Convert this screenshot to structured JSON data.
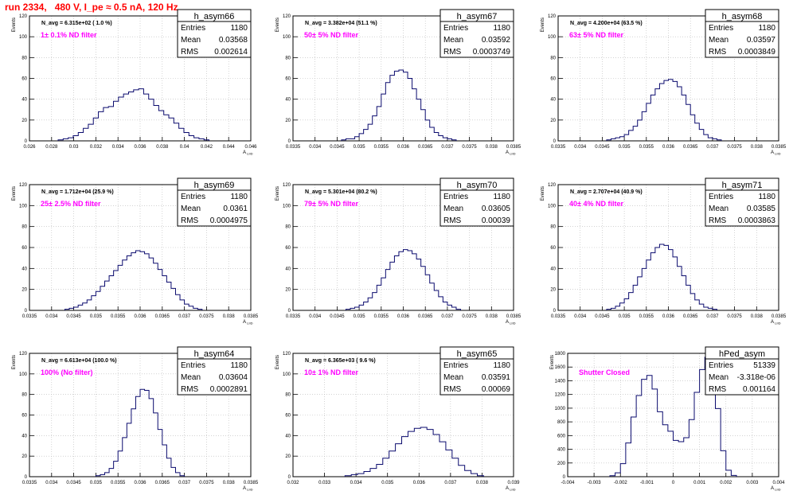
{
  "page_title": "run 2334,   480 V, I_pe ≈ 0.5 nA, 120 Hz",
  "chart_data": [
    {
      "type": "histogram",
      "stats_title": "h_asym66",
      "stats": [
        [
          "Entries",
          "1180"
        ],
        [
          "Mean",
          "0.03568"
        ],
        [
          "RMS",
          "0.002614"
        ]
      ],
      "navg_label": "N_avg = 6.315e+02 ( 1.0 %)",
      "filter_label": "1± 0.1% ND filter",
      "ylabel": "Events",
      "xlabel": "A_LIID",
      "xlim": [
        0.025,
        0.047
      ],
      "ylim": [
        0,
        120
      ],
      "xtick_labels": [
        "0.026",
        "0.028",
        "0.03",
        "0.032",
        "0.034",
        "0.036",
        "0.038",
        "0.04",
        "0.042",
        "0.044",
        "0.046"
      ],
      "ytick_labels": [
        "0",
        "20",
        "40",
        "60",
        "80",
        "100",
        "120"
      ],
      "x": [
        0.0281,
        0.0286,
        0.0291,
        0.0296,
        0.0301,
        0.0306,
        0.0311,
        0.0316,
        0.0321,
        0.0326,
        0.0331,
        0.0336,
        0.0341,
        0.0346,
        0.0351,
        0.0356,
        0.0361,
        0.0366,
        0.0371,
        0.0376,
        0.0381,
        0.0386,
        0.0391,
        0.0396,
        0.0401,
        0.0406,
        0.0411,
        0.0416,
        0.0421,
        0.0426
      ],
      "values": [
        1,
        2,
        3,
        5,
        8,
        12,
        16,
        22,
        28,
        32,
        33,
        38,
        42,
        45,
        47,
        49,
        50,
        45,
        40,
        34,
        29,
        25,
        22,
        17,
        12,
        8,
        5,
        3,
        2,
        1
      ]
    },
    {
      "type": "histogram",
      "stats_title": "h_asym67",
      "stats": [
        [
          "Entries",
          "1180"
        ],
        [
          "Mean",
          "0.03592"
        ],
        [
          "RMS",
          "0.0003749"
        ]
      ],
      "navg_label": "N_avg = 3.382e+04 (51.1 %)",
      "filter_label": "50± 5% ND filter",
      "ylabel": "Events",
      "xlabel": "A_LIID",
      "xlim": [
        0.0335,
        0.0385
      ],
      "ylim": [
        0,
        120
      ],
      "xtick_labels": [
        "0.0335",
        "0.034",
        "0.0345",
        "0.035",
        "0.0355",
        "0.036",
        "0.0365",
        "0.037",
        "0.0375",
        "0.038",
        "0.0385"
      ],
      "ytick_labels": [
        "0",
        "20",
        "40",
        "60",
        "80",
        "100",
        "120"
      ],
      "x": [
        0.03465,
        0.03475,
        0.03485,
        0.03495,
        0.03505,
        0.03515,
        0.03525,
        0.03535,
        0.03545,
        0.03555,
        0.03565,
        0.03575,
        0.03585,
        0.03595,
        0.03605,
        0.03615,
        0.03625,
        0.03635,
        0.03645,
        0.03655,
        0.03665,
        0.03675,
        0.03685,
        0.03695,
        0.03705,
        0.03715
      ],
      "values": [
        1,
        2,
        2,
        4,
        7,
        11,
        16,
        24,
        33,
        45,
        56,
        63,
        67,
        68,
        66,
        60,
        50,
        40,
        30,
        20,
        13,
        8,
        5,
        3,
        2,
        1
      ]
    },
    {
      "type": "histogram",
      "stats_title": "h_asym68",
      "stats": [
        [
          "Entries",
          "1180"
        ],
        [
          "Mean",
          "0.03597"
        ],
        [
          "RMS",
          "0.0003849"
        ]
      ],
      "navg_label": "N_avg = 4.200e+04 (63.5 %)",
      "filter_label": "63± 5% ND filter",
      "ylabel": "Events",
      "xlabel": "A_LIID",
      "xlim": [
        0.0335,
        0.0385
      ],
      "ylim": [
        0,
        120
      ],
      "xtick_labels": [
        "0.0335",
        "0.034",
        "0.0345",
        "0.035",
        "0.0355",
        "0.036",
        "0.0365",
        "0.037",
        "0.0375",
        "0.038",
        "0.0385"
      ],
      "ytick_labels": [
        "0",
        "20",
        "40",
        "60",
        "80",
        "100",
        "120"
      ],
      "x": [
        0.03465,
        0.03475,
        0.03485,
        0.03495,
        0.03505,
        0.03515,
        0.03525,
        0.03535,
        0.03545,
        0.03555,
        0.03565,
        0.03575,
        0.03585,
        0.03595,
        0.03605,
        0.03615,
        0.03625,
        0.03635,
        0.03645,
        0.03655,
        0.03665,
        0.03675,
        0.03685,
        0.03695,
        0.03705,
        0.03715
      ],
      "values": [
        1,
        2,
        3,
        4,
        6,
        10,
        14,
        20,
        28,
        36,
        44,
        50,
        55,
        58,
        59,
        57,
        52,
        44,
        35,
        25,
        17,
        11,
        6,
        3,
        2,
        1
      ]
    },
    {
      "type": "histogram",
      "stats_title": "h_asym69",
      "stats": [
        [
          "Entries",
          "1180"
        ],
        [
          "Mean",
          "0.0361"
        ],
        [
          "RMS",
          "0.0004975"
        ]
      ],
      "navg_label": "N_avg = 1.712e+04 (25.9 %)",
      "filter_label": "25± 2.5% ND filter",
      "ylabel": "Events",
      "xlabel": "A_LIID",
      "xlim": [
        0.0335,
        0.0385
      ],
      "ylim": [
        0,
        120
      ],
      "xtick_labels": [
        "0.0335",
        "0.034",
        "0.0345",
        "0.035",
        "0.0355",
        "0.036",
        "0.0365",
        "0.037",
        "0.0375",
        "0.038",
        "0.0385"
      ],
      "ytick_labels": [
        "0",
        "20",
        "40",
        "60",
        "80",
        "100",
        "120"
      ],
      "x": [
        0.03435,
        0.03445,
        0.03455,
        0.03465,
        0.03475,
        0.03485,
        0.03495,
        0.03505,
        0.03515,
        0.03525,
        0.03535,
        0.03545,
        0.03555,
        0.03565,
        0.03575,
        0.03585,
        0.03595,
        0.03605,
        0.03615,
        0.03625,
        0.03635,
        0.03645,
        0.03655,
        0.03665,
        0.03675,
        0.03685,
        0.03695,
        0.03705,
        0.03715,
        0.03725,
        0.03735
      ],
      "values": [
        1,
        2,
        3,
        5,
        7,
        10,
        14,
        18,
        23,
        28,
        33,
        38,
        43,
        48,
        52,
        55,
        57,
        56,
        54,
        50,
        45,
        39,
        33,
        27,
        21,
        15,
        10,
        6,
        4,
        2,
        1
      ]
    },
    {
      "type": "histogram",
      "stats_title": "h_asym70",
      "stats": [
        [
          "Entries",
          "1180"
        ],
        [
          "Mean",
          "0.03605"
        ],
        [
          "RMS",
          "0.00039"
        ]
      ],
      "navg_label": "N_avg = 5.301e+04 (80.2 %)",
      "filter_label": "79± 5% ND filter",
      "ylabel": "Events",
      "xlabel": "A_LIID",
      "xlim": [
        0.0335,
        0.0385
      ],
      "ylim": [
        0,
        120
      ],
      "xtick_labels": [
        "0.0335",
        "0.034",
        "0.0345",
        "0.035",
        "0.0355",
        "0.036",
        "0.0365",
        "0.037",
        "0.0375",
        "0.038",
        "0.0385"
      ],
      "ytick_labels": [
        "0",
        "20",
        "40",
        "60",
        "80",
        "100",
        "120"
      ],
      "x": [
        0.03475,
        0.03485,
        0.03495,
        0.03505,
        0.03515,
        0.03525,
        0.03535,
        0.03545,
        0.03555,
        0.03565,
        0.03575,
        0.03585,
        0.03595,
        0.03605,
        0.03615,
        0.03625,
        0.03635,
        0.03645,
        0.03655,
        0.03665,
        0.03675,
        0.03685,
        0.03695,
        0.03705,
        0.03715,
        0.03725
      ],
      "values": [
        1,
        2,
        3,
        5,
        8,
        12,
        17,
        24,
        31,
        39,
        46,
        52,
        56,
        58,
        57,
        54,
        49,
        42,
        34,
        26,
        19,
        13,
        8,
        5,
        3,
        1
      ]
    },
    {
      "type": "histogram",
      "stats_title": "h_asym71",
      "stats": [
        [
          "Entries",
          "1180"
        ],
        [
          "Mean",
          "0.03585"
        ],
        [
          "RMS",
          "0.0003863"
        ]
      ],
      "navg_label": "N_avg = 2.707e+04 (40.9 %)",
      "filter_label": "40± 4% ND filter",
      "ylabel": "Events",
      "xlabel": "A_LIID",
      "xlim": [
        0.0335,
        0.0385
      ],
      "ylim": [
        0,
        120
      ],
      "xtick_labels": [
        "0.0335",
        "0.034",
        "0.0345",
        "0.035",
        "0.0355",
        "0.036",
        "0.0365",
        "0.037",
        "0.0375",
        "0.038",
        "0.0385"
      ],
      "ytick_labels": [
        "0",
        "20",
        "40",
        "60",
        "80",
        "100",
        "120"
      ],
      "x": [
        0.03465,
        0.03475,
        0.03485,
        0.03495,
        0.03505,
        0.03515,
        0.03525,
        0.03535,
        0.03545,
        0.03555,
        0.03565,
        0.03575,
        0.03585,
        0.03595,
        0.03605,
        0.03615,
        0.03625,
        0.03635,
        0.03645,
        0.03655,
        0.03665,
        0.03675,
        0.03685,
        0.03695,
        0.03705
      ],
      "values": [
        1,
        2,
        4,
        7,
        11,
        17,
        24,
        32,
        40,
        48,
        55,
        60,
        63,
        62,
        58,
        51,
        42,
        33,
        24,
        16,
        10,
        6,
        3,
        2,
        1
      ]
    },
    {
      "type": "histogram",
      "stats_title": "h_asym64",
      "stats": [
        [
          "Entries",
          "1180"
        ],
        [
          "Mean",
          "0.03604"
        ],
        [
          "RMS",
          "0.0002891"
        ]
      ],
      "navg_label": "N_avg = 6.613e+04 (100.0 %)",
      "filter_label": "100% (No filter)",
      "ylabel": "Events",
      "xlabel": "A_LIID",
      "xlim": [
        0.0335,
        0.0385
      ],
      "ylim": [
        0,
        120
      ],
      "xtick_labels": [
        "0.0335",
        "0.034",
        "0.0345",
        "0.035",
        "0.0355",
        "0.036",
        "0.0365",
        "0.037",
        "0.0375",
        "0.038",
        "0.0385"
      ],
      "ytick_labels": [
        "0",
        "20",
        "40",
        "60",
        "80",
        "100",
        "120"
      ],
      "x": [
        0.03505,
        0.03515,
        0.03525,
        0.03535,
        0.03545,
        0.03555,
        0.03565,
        0.03575,
        0.03585,
        0.03595,
        0.03605,
        0.03615,
        0.03625,
        0.03635,
        0.03645,
        0.03655,
        0.03665,
        0.03675,
        0.03685,
        0.03695
      ],
      "values": [
        1,
        2,
        4,
        8,
        15,
        25,
        38,
        52,
        66,
        78,
        85,
        84,
        76,
        62,
        46,
        31,
        18,
        9,
        4,
        1
      ]
    },
    {
      "type": "histogram",
      "stats_title": "h_asym65",
      "stats": [
        [
          "Entries",
          "1180"
        ],
        [
          "Mean",
          "0.03591"
        ],
        [
          "RMS",
          "0.00069"
        ]
      ],
      "navg_label": "N_avg = 6.365e+03 ( 9.6 %)",
      "filter_label": "10± 1% ND filter",
      "ylabel": "Events",
      "xlabel": "A_LIID",
      "xlim": [
        0.032,
        0.039
      ],
      "ylim": [
        0,
        120
      ],
      "xtick_labels": [
        "0.032",
        "0.033",
        "0.034",
        "0.035",
        "0.036",
        "0.037",
        "0.038",
        "0.039"
      ],
      "ytick_labels": [
        "0",
        "20",
        "40",
        "60",
        "80",
        "100",
        "120"
      ],
      "x": [
        0.03375,
        0.03395,
        0.03415,
        0.03435,
        0.03455,
        0.03475,
        0.03495,
        0.03515,
        0.03535,
        0.03555,
        0.03575,
        0.03595,
        0.03615,
        0.03635,
        0.03655,
        0.03675,
        0.03695,
        0.03715,
        0.03735,
        0.03755,
        0.03775,
        0.03795
      ],
      "values": [
        1,
        2,
        3,
        5,
        8,
        12,
        18,
        25,
        32,
        39,
        44,
        47,
        48,
        46,
        41,
        34,
        26,
        18,
        11,
        6,
        3,
        1
      ]
    },
    {
      "type": "histogram",
      "stats_title": "hPed_asym",
      "stats": [
        [
          "Entries",
          "51339"
        ],
        [
          "Mean",
          "-3.318e-06"
        ],
        [
          "RMS",
          "0.001164"
        ]
      ],
      "filter_label": "Shutter Closed",
      "ylabel": "Events",
      "xlabel": "A_LIID",
      "xlim": [
        -0.004,
        0.004
      ],
      "ylim": [
        0,
        1900
      ],
      "xtick_labels": [
        "-0.004",
        "-0.003",
        "-0.002",
        "-0.001",
        "0",
        "0.001",
        "0.002",
        "0.003",
        "0.004"
      ],
      "ytick_labels": [
        "0",
        "200",
        "400",
        "600",
        "800",
        "1000",
        "1200",
        "1400",
        "1600",
        "1800"
      ],
      "x": [
        -0.0023,
        -0.0021,
        -0.0019,
        -0.0017,
        -0.0015,
        -0.0013,
        -0.0011,
        -0.0009,
        -0.0007,
        -0.0005,
        -0.0003,
        -0.0001,
        0.0001,
        0.0003,
        0.0005,
        0.0007,
        0.0009,
        0.0011,
        0.0013,
        0.0015,
        0.0017,
        0.0019,
        0.0021,
        0.0023
      ],
      "values": [
        15,
        60,
        200,
        520,
        920,
        1250,
        1500,
        1560,
        1350,
        1000,
        800,
        700,
        560,
        540,
        600,
        880,
        1300,
        1650,
        1840,
        1700,
        1050,
        400,
        100,
        20
      ]
    }
  ]
}
